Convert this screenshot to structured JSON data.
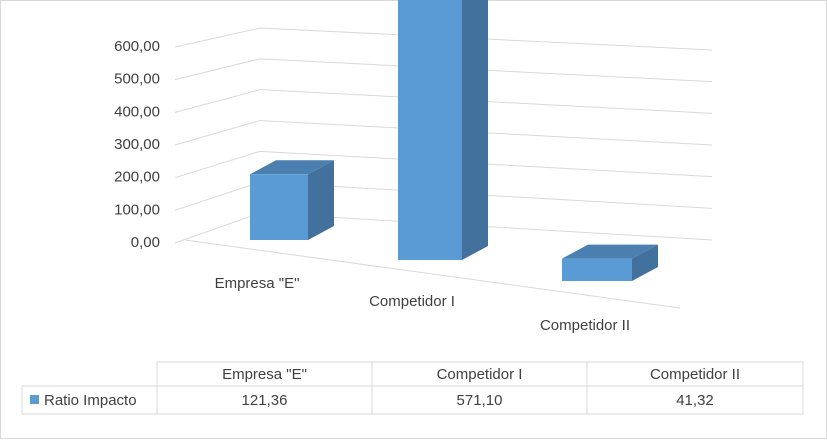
{
  "chart_data": {
    "type": "bar3d",
    "categories": [
      "Empresa \"E\"",
      "Competidor I",
      "Competidor II"
    ],
    "series": [
      {
        "name": "Ratio Impacto",
        "color": "#5b9bd5",
        "values": [
          121.36,
          571.1,
          41.32
        ],
        "value_labels": [
          "121,36",
          "571,10",
          "41,32"
        ]
      }
    ],
    "ylim": [
      0,
      600
    ],
    "yticks": [
      {
        "value": 0,
        "label": "0,00"
      },
      {
        "value": 100,
        "label": "100,00"
      },
      {
        "value": 200,
        "label": "200,00"
      },
      {
        "value": 300,
        "label": "300,00"
      },
      {
        "value": 400,
        "label": "400,00"
      },
      {
        "value": 500,
        "label": "500,00"
      },
      {
        "value": 600,
        "label": "600,00"
      }
    ],
    "grid": true,
    "data_table": true
  }
}
